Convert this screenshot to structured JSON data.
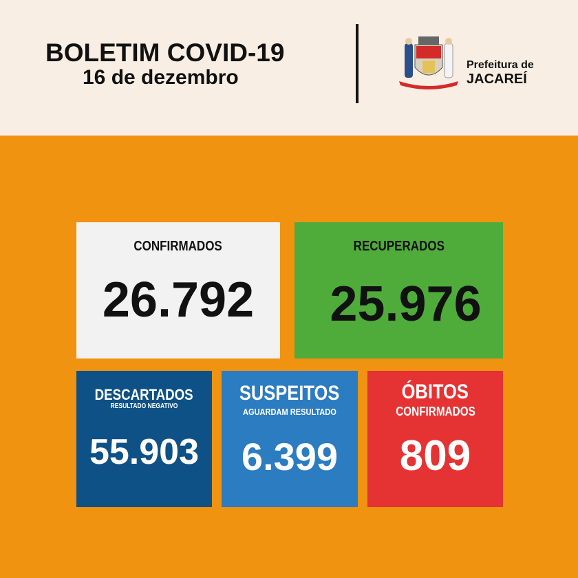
{
  "header": {
    "title": "BOLETIM COVID-19",
    "date": "16 de dezembro",
    "org_line1": "Prefeitura de",
    "org_line2": "JACAREÍ",
    "logo_icon": "coat-of-arms-icon"
  },
  "colors": {
    "background": "#ef9311",
    "header": "#f8eee4",
    "confirmados": "#f2f2f2",
    "recuperados": "#4fac3a",
    "descartados": "#0e5186",
    "suspeitos": "#2b7cc0",
    "obitos": "#e53333"
  },
  "cards": {
    "confirmados": {
      "label": "CONFIRMADOS",
      "value": "26.792"
    },
    "recuperados": {
      "label": "RECUPERADOS",
      "value": "25.976"
    },
    "descartados": {
      "label": "DESCARTADOS",
      "sublabel": "RESULTADO NEGATIVO",
      "value": "55.903"
    },
    "suspeitos": {
      "label": "SUSPEITOS",
      "sublabel": "AGUARDAM RESULTADO",
      "value": "6.399"
    },
    "obitos": {
      "label": "ÓBITOS",
      "sublabel": "CONFIRMADOS",
      "value": "809"
    }
  }
}
